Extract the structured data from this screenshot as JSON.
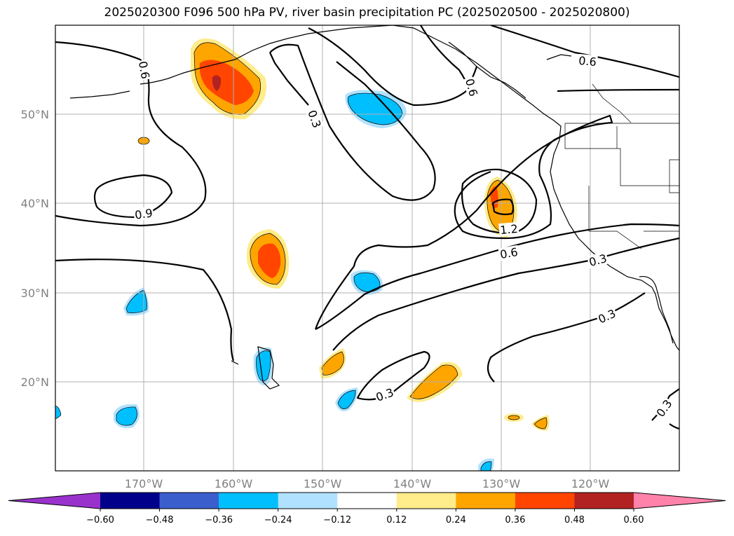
{
  "title": "2025020300 F096 500 hPa PV, river basin precipitation PC (2025020500 - 2025020800)",
  "lat_labels": [
    "50°N",
    "40°N",
    "30°N",
    "20°N"
  ],
  "lon_labels": [
    "170°W",
    "160°W",
    "150°W",
    "140°W",
    "130°W",
    "120°W"
  ],
  "contour_labels": [
    "0.6",
    "0.3",
    "0.6",
    "0.6",
    "0.9",
    "1.2",
    "0.6",
    "0.3",
    "0.3",
    "0.3",
    "0.3"
  ],
  "colorbar": {
    "ticks": [
      "−0.60",
      "−0.48",
      "−0.36",
      "−0.24",
      "−0.12",
      "0.12",
      "0.24",
      "0.36",
      "0.48",
      "0.60"
    ],
    "colors": [
      "#9932cc",
      "#00008b",
      "#3a5fcd",
      "#00bfff",
      "#b0e2ff",
      "#ffffff",
      "#ffec8b",
      "#ffa500",
      "#ff4500",
      "#b22222",
      "#ff82ab"
    ]
  },
  "colors": {
    "neg_strong": "#00bfff",
    "neg_weak": "#b0e2ff",
    "pos_weak": "#ffec8b",
    "pos_mid": "#ffa500",
    "pos_strong": "#ff4500",
    "pos_max": "#b22222"
  }
}
